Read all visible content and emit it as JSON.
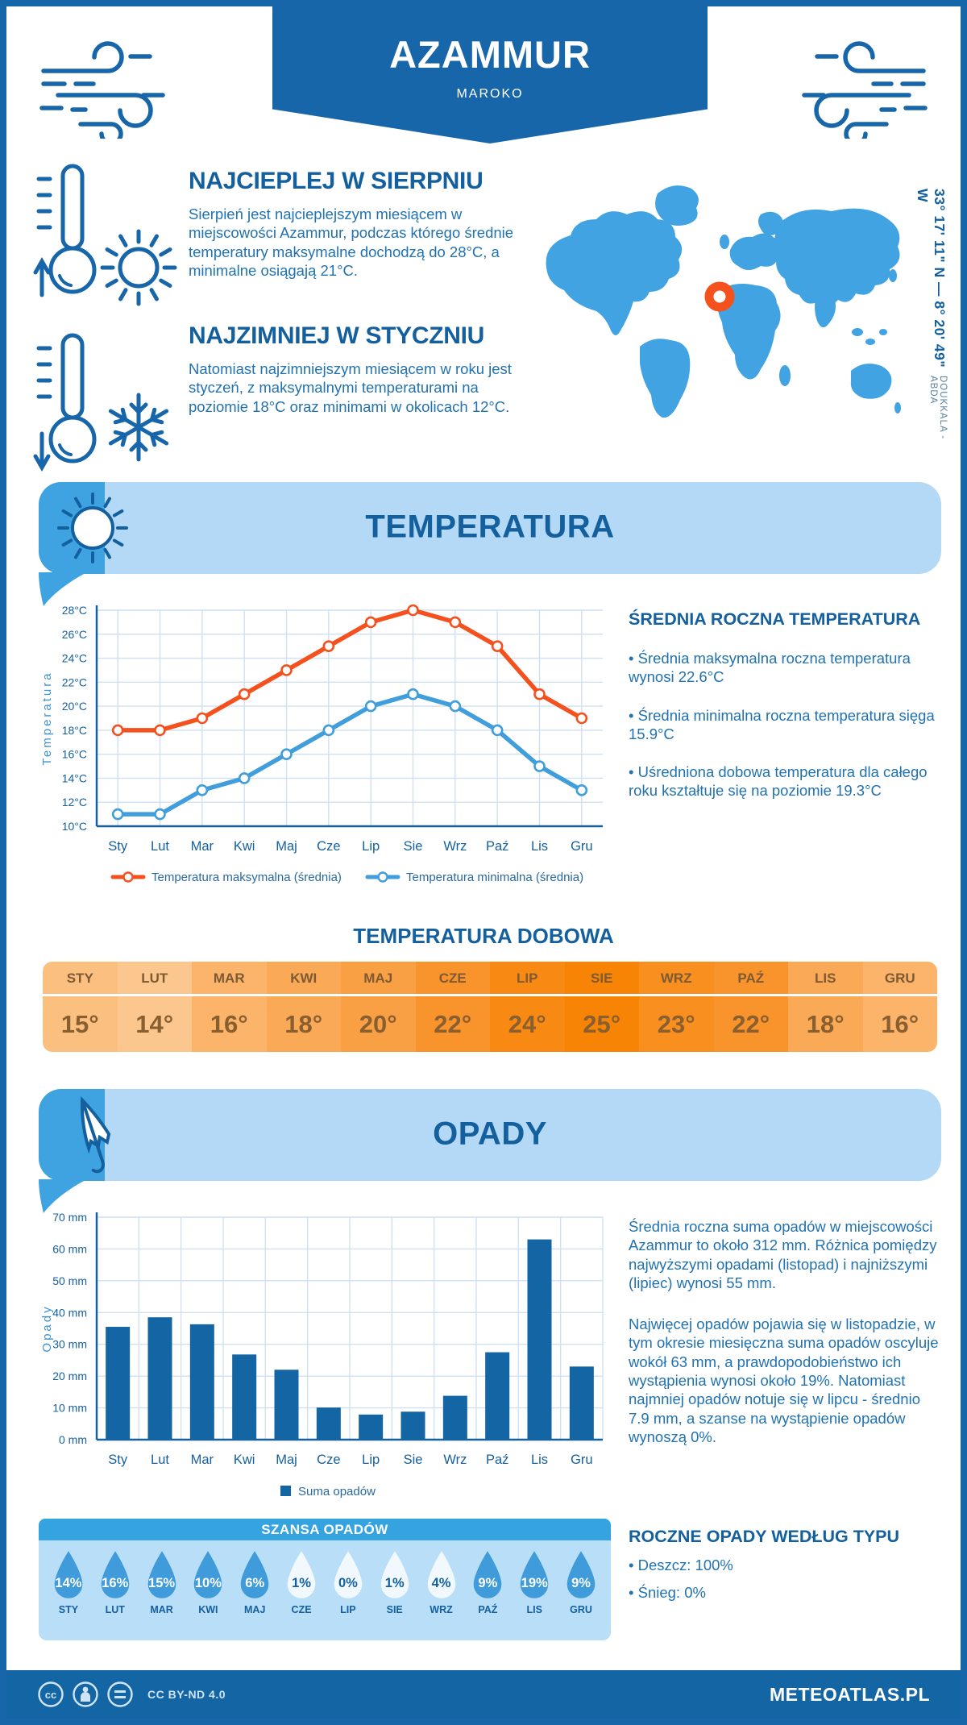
{
  "header": {
    "title": "AZAMMUR",
    "subtitle": "MAROKO"
  },
  "highlights": [
    {
      "heading": "NAJCIEPLEJ W SIERPNIU",
      "text": "Sierpień jest najcieplejszym miesiącem w miejscowości Azammur, podczas którego średnie temperatury maksymalne dochodzą do 28°C, a minimalne osiągają 21°C."
    },
    {
      "heading": "NAJZIMNIEJ W STYCZNIU",
      "text": "Natomiast najzimniejszym miesiącem w roku jest styczeń, z maksymalnymi temperaturami na poziomie 18°C oraz minimami w okolicach 12°C."
    }
  ],
  "map": {
    "coordinates": "33° 17' 11\" N — 8° 20' 49\" W",
    "region": "DOUKKALA - ABDA"
  },
  "temperature": {
    "banner": "TEMPERATURA",
    "annual_heading": "ŚREDNIA ROCZNA TEMPERATURA",
    "annual_bullets": [
      "• Średnia maksymalna roczna temperatura wynosi 22.6°C",
      "• Średnia minimalna roczna temperatura sięga 15.9°C",
      "• Uśredniona dobowa temperatura dla całego roku kształtuje się na poziomie 19.3°C"
    ],
    "daily_heading": "TEMPERATURA DOBOWA",
    "daily": {
      "months": [
        "STY",
        "LUT",
        "MAR",
        "KWI",
        "MAJ",
        "CZE",
        "LIP",
        "SIE",
        "WRZ",
        "PAŹ",
        "LIS",
        "GRU"
      ],
      "values": [
        "15°",
        "14°",
        "16°",
        "18°",
        "20°",
        "22°",
        "24°",
        "25°",
        "23°",
        "22°",
        "18°",
        "16°"
      ],
      "colors": [
        "#fbbf80",
        "#fcc78f",
        "#fbb46a",
        "#faa956",
        "#f99f44",
        "#f9932c",
        "#f88a14",
        "#f88405",
        "#f88f1f",
        "#f9932c",
        "#faa956",
        "#fbb46a"
      ]
    }
  },
  "precipitation": {
    "banner": "OPADY",
    "paragraphs": [
      "Średnia roczna suma opadów w miejscowości Azammur to około 312 mm. Różnica pomiędzy najwyższymi opadami (listopad) i najniższymi (lipiec) wynosi 55 mm.",
      "Najwięcej opadów pojawia się w listopadzie, w tym okresie miesięczna suma opadów oscyluje wokół 63 mm, a prawdopodobieństwo ich wystąpienia wynosi około 19%. Natomiast najmniej opadów notuje się w lipcu - średnio 7.9 mm, a szanse na wystąpienie opadów wynoszą 0%."
    ],
    "types_heading": "ROCZNE OPADY WEDŁUG TYPU",
    "types_bullets": [
      "• Deszcz: 100%",
      "• Śnieg: 0%"
    ],
    "chance": {
      "heading": "SZANSA OPADÓW",
      "months": [
        "STY",
        "LUT",
        "MAR",
        "KWI",
        "MAJ",
        "CZE",
        "LIP",
        "SIE",
        "WRZ",
        "PAŹ",
        "LIS",
        "GRU"
      ],
      "values": [
        "14%",
        "16%",
        "15%",
        "10%",
        "6%",
        "1%",
        "0%",
        "1%",
        "4%",
        "9%",
        "19%",
        "9%"
      ],
      "light": [
        false,
        false,
        false,
        false,
        false,
        true,
        true,
        true,
        true,
        false,
        false,
        false
      ],
      "drop_blue": "#3f9bd9",
      "drop_light": "#f2f9fe"
    }
  },
  "footer": {
    "license": "CC BY-ND 4.0",
    "brand": "METEOATLAS.PL"
  },
  "chart_data": [
    {
      "type": "line",
      "name": "temperature-line-chart",
      "categories": [
        "Sty",
        "Lut",
        "Mar",
        "Kwi",
        "Maj",
        "Cze",
        "Lip",
        "Sie",
        "Wrz",
        "Paź",
        "Lis",
        "Gru"
      ],
      "series": [
        {
          "name": "Temperatura maksymalna (średnia)",
          "color": "#f4511e",
          "values": [
            18,
            18,
            19,
            21,
            23,
            25,
            27,
            28,
            27,
            25,
            21,
            19
          ]
        },
        {
          "name": "Temperatura minimalna (średnia)",
          "color": "#3f9edb",
          "values": [
            11,
            11,
            13,
            14,
            16,
            18,
            20,
            21,
            20,
            18,
            15,
            13
          ]
        }
      ],
      "ylabel": "Temperatura",
      "ylim": [
        10,
        28
      ],
      "ytick_step": 2,
      "ytick_suffix": "°C",
      "grid": true,
      "legend_position": "bottom"
    },
    {
      "type": "bar",
      "name": "precipitation-bar-chart",
      "categories": [
        "Sty",
        "Lut",
        "Mar",
        "Kwi",
        "Maj",
        "Cze",
        "Lip",
        "Sie",
        "Wrz",
        "Paź",
        "Lis",
        "Gru"
      ],
      "series": [
        {
          "name": "Suma opadów",
          "color": "#1365a4",
          "values": [
            35.5,
            38.5,
            36.3,
            26.8,
            22,
            10.1,
            7.9,
            8.8,
            13.8,
            27.5,
            63,
            23
          ]
        }
      ],
      "ylabel": "Opady",
      "ylim": [
        0,
        70
      ],
      "ytick_step": 10,
      "ytick_suffix": " mm",
      "grid": true,
      "legend_position": "bottom"
    }
  ]
}
